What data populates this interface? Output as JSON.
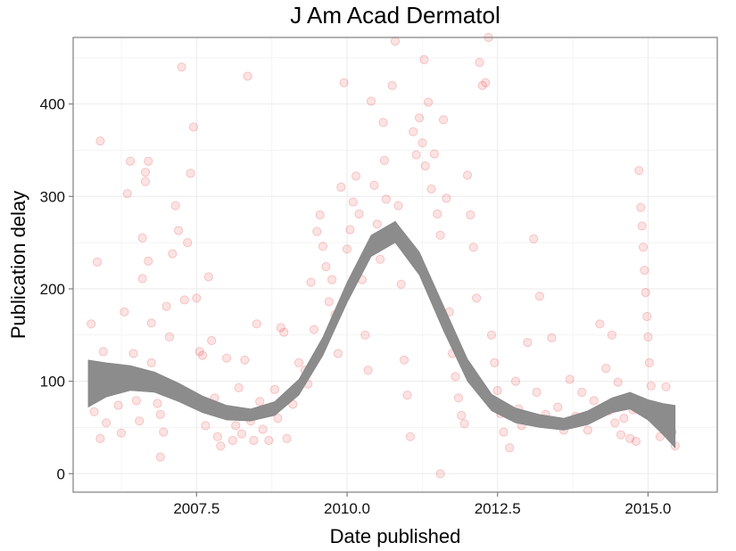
{
  "chart_data": {
    "type": "scatter",
    "title": "J Am Acad Dermatol",
    "xlabel": "Date published",
    "ylabel": "Publication delay",
    "xlim": [
      2005.45,
      2016.15
    ],
    "ylim": [
      -20,
      472
    ],
    "x_ticks": [
      2007.5,
      2010.0,
      2012.5,
      2015.0
    ],
    "x_tick_labels": [
      "2007.5",
      "2010.0",
      "2012.5",
      "2015.0"
    ],
    "y_ticks": [
      0,
      100,
      200,
      300,
      400
    ],
    "y_tick_labels": [
      "0",
      "100",
      "200",
      "300",
      "400"
    ],
    "grid": true,
    "point_color": "#e41a1c",
    "band_color": "#8c8c8c",
    "smooth_band": [
      {
        "x": 2005.7,
        "lo": 72,
        "hi": 123
      },
      {
        "x": 2006.0,
        "lo": 83,
        "hi": 120
      },
      {
        "x": 2006.4,
        "lo": 90,
        "hi": 117
      },
      {
        "x": 2006.8,
        "lo": 88,
        "hi": 110
      },
      {
        "x": 2007.2,
        "lo": 78,
        "hi": 98
      },
      {
        "x": 2007.6,
        "lo": 66,
        "hi": 84
      },
      {
        "x": 2008.0,
        "lo": 58,
        "hi": 74
      },
      {
        "x": 2008.4,
        "lo": 57,
        "hi": 70
      },
      {
        "x": 2008.8,
        "lo": 63,
        "hi": 78
      },
      {
        "x": 2009.2,
        "lo": 85,
        "hi": 102
      },
      {
        "x": 2009.6,
        "lo": 128,
        "hi": 148
      },
      {
        "x": 2010.0,
        "lo": 185,
        "hi": 207
      },
      {
        "x": 2010.4,
        "lo": 235,
        "hi": 258
      },
      {
        "x": 2010.8,
        "lo": 250,
        "hi": 273
      },
      {
        "x": 2011.2,
        "lo": 215,
        "hi": 240
      },
      {
        "x": 2011.6,
        "lo": 155,
        "hi": 182
      },
      {
        "x": 2012.0,
        "lo": 100,
        "hi": 124
      },
      {
        "x": 2012.4,
        "lo": 68,
        "hi": 86
      },
      {
        "x": 2012.8,
        "lo": 55,
        "hi": 71
      },
      {
        "x": 2013.2,
        "lo": 50,
        "hi": 64
      },
      {
        "x": 2013.6,
        "lo": 47,
        "hi": 60
      },
      {
        "x": 2014.0,
        "lo": 53,
        "hi": 68
      },
      {
        "x": 2014.4,
        "lo": 66,
        "hi": 82
      },
      {
        "x": 2014.7,
        "lo": 70,
        "hi": 88
      },
      {
        "x": 2015.0,
        "lo": 58,
        "hi": 80
      },
      {
        "x": 2015.25,
        "lo": 42,
        "hi": 76
      },
      {
        "x": 2015.45,
        "lo": 28,
        "hi": 74
      }
    ],
    "points": [
      [
        2005.75,
        162
      ],
      [
        2005.9,
        360
      ],
      [
        2005.85,
        229
      ],
      [
        2005.95,
        132
      ],
      [
        2005.8,
        67
      ],
      [
        2005.9,
        38
      ],
      [
        2006.0,
        55
      ],
      [
        2006.05,
        96
      ],
      [
        2006.2,
        74
      ],
      [
        2006.25,
        44
      ],
      [
        2006.3,
        175
      ],
      [
        2006.35,
        303
      ],
      [
        2006.4,
        338
      ],
      [
        2006.45,
        130
      ],
      [
        2006.5,
        79
      ],
      [
        2006.55,
        57
      ],
      [
        2006.6,
        211
      ],
      [
        2006.6,
        255
      ],
      [
        2006.65,
        316
      ],
      [
        2006.65,
        326
      ],
      [
        2006.7,
        338
      ],
      [
        2006.7,
        230
      ],
      [
        2006.75,
        163
      ],
      [
        2006.75,
        120
      ],
      [
        2006.8,
        93
      ],
      [
        2006.85,
        76
      ],
      [
        2006.9,
        64
      ],
      [
        2006.95,
        45
      ],
      [
        2006.9,
        18
      ],
      [
        2007.0,
        181
      ],
      [
        2007.05,
        148
      ],
      [
        2007.1,
        238
      ],
      [
        2007.15,
        290
      ],
      [
        2007.2,
        263
      ],
      [
        2007.25,
        440
      ],
      [
        2007.3,
        188
      ],
      [
        2007.35,
        250
      ],
      [
        2007.4,
        325
      ],
      [
        2007.45,
        375
      ],
      [
        2007.5,
        190
      ],
      [
        2007.55,
        132
      ],
      [
        2007.6,
        128
      ],
      [
        2007.65,
        52
      ],
      [
        2007.7,
        213
      ],
      [
        2007.75,
        144
      ],
      [
        2007.8,
        82
      ],
      [
        2007.85,
        40
      ],
      [
        2007.9,
        30
      ],
      [
        2008.0,
        125
      ],
      [
        2008.05,
        64
      ],
      [
        2008.1,
        36
      ],
      [
        2008.15,
        52
      ],
      [
        2008.2,
        93
      ],
      [
        2008.25,
        43
      ],
      [
        2008.3,
        123
      ],
      [
        2008.35,
        430
      ],
      [
        2008.4,
        57
      ],
      [
        2008.45,
        36
      ],
      [
        2008.5,
        162
      ],
      [
        2008.55,
        78
      ],
      [
        2008.6,
        48
      ],
      [
        2008.7,
        36
      ],
      [
        2008.8,
        91
      ],
      [
        2008.85,
        60
      ],
      [
        2008.9,
        158
      ],
      [
        2008.95,
        153
      ],
      [
        2009.0,
        38
      ],
      [
        2009.1,
        75
      ],
      [
        2009.2,
        120
      ],
      [
        2009.3,
        112
      ],
      [
        2009.35,
        97
      ],
      [
        2009.4,
        207
      ],
      [
        2009.45,
        156
      ],
      [
        2009.5,
        262
      ],
      [
        2009.55,
        280
      ],
      [
        2009.6,
        246
      ],
      [
        2009.65,
        224
      ],
      [
        2009.7,
        186
      ],
      [
        2009.75,
        210
      ],
      [
        2009.8,
        172
      ],
      [
        2009.85,
        130
      ],
      [
        2009.9,
        310
      ],
      [
        2009.95,
        423
      ],
      [
        2010.0,
        243
      ],
      [
        2010.05,
        264
      ],
      [
        2010.1,
        294
      ],
      [
        2010.15,
        322
      ],
      [
        2010.2,
        281
      ],
      [
        2010.25,
        210
      ],
      [
        2010.3,
        150
      ],
      [
        2010.35,
        112
      ],
      [
        2010.4,
        403
      ],
      [
        2010.45,
        312
      ],
      [
        2010.5,
        270
      ],
      [
        2010.55,
        232
      ],
      [
        2010.6,
        380
      ],
      [
        2010.62,
        339
      ],
      [
        2010.65,
        297
      ],
      [
        2010.7,
        260
      ],
      [
        2010.75,
        420
      ],
      [
        2010.8,
        468
      ],
      [
        2010.85,
        290
      ],
      [
        2010.9,
        205
      ],
      [
        2010.95,
        123
      ],
      [
        2011.0,
        85
      ],
      [
        2011.05,
        40
      ],
      [
        2011.1,
        370
      ],
      [
        2011.15,
        345
      ],
      [
        2011.2,
        385
      ],
      [
        2011.25,
        358
      ],
      [
        2011.28,
        448
      ],
      [
        2011.3,
        333
      ],
      [
        2011.35,
        402
      ],
      [
        2011.4,
        308
      ],
      [
        2011.45,
        346
      ],
      [
        2011.5,
        281
      ],
      [
        2011.55,
        258
      ],
      [
        2011.6,
        383
      ],
      [
        2011.65,
        298
      ],
      [
        2011.7,
        175
      ],
      [
        2011.75,
        130
      ],
      [
        2011.8,
        105
      ],
      [
        2011.85,
        82
      ],
      [
        2011.9,
        63
      ],
      [
        2011.95,
        54
      ],
      [
        2012.0,
        323
      ],
      [
        2012.05,
        280
      ],
      [
        2012.1,
        245
      ],
      [
        2012.15,
        190
      ],
      [
        2012.2,
        445
      ],
      [
        2012.25,
        420
      ],
      [
        2012.3,
        423
      ],
      [
        2012.35,
        472
      ],
      [
        2012.4,
        150
      ],
      [
        2012.45,
        120
      ],
      [
        2012.5,
        90
      ],
      [
        2012.55,
        65
      ],
      [
        2012.6,
        45
      ],
      [
        2012.7,
        28
      ],
      [
        2012.8,
        100
      ],
      [
        2012.85,
        70
      ],
      [
        2012.9,
        52
      ],
      [
        2013.0,
        142
      ],
      [
        2013.1,
        254
      ],
      [
        2013.15,
        88
      ],
      [
        2013.2,
        192
      ],
      [
        2013.3,
        64
      ],
      [
        2013.4,
        147
      ],
      [
        2013.5,
        72
      ],
      [
        2013.6,
        47
      ],
      [
        2013.7,
        102
      ],
      [
        2013.8,
        62
      ],
      [
        2013.9,
        88
      ],
      [
        2014.0,
        47
      ],
      [
        2014.1,
        79
      ],
      [
        2014.2,
        162
      ],
      [
        2014.3,
        114
      ],
      [
        2014.35,
        68
      ],
      [
        2014.4,
        150
      ],
      [
        2014.45,
        55
      ],
      [
        2014.5,
        99
      ],
      [
        2014.55,
        42
      ],
      [
        2014.6,
        60
      ],
      [
        2014.7,
        38
      ],
      [
        2014.75,
        69
      ],
      [
        2014.8,
        35
      ],
      [
        2014.85,
        328
      ],
      [
        2014.88,
        288
      ],
      [
        2014.9,
        268
      ],
      [
        2014.92,
        245
      ],
      [
        2014.94,
        220
      ],
      [
        2014.96,
        196
      ],
      [
        2014.98,
        170
      ],
      [
        2015.0,
        148
      ],
      [
        2015.02,
        120
      ],
      [
        2015.05,
        95
      ],
      [
        2015.1,
        72
      ],
      [
        2015.15,
        55
      ],
      [
        2015.2,
        40
      ],
      [
        2015.3,
        94
      ],
      [
        2015.35,
        62
      ],
      [
        2015.4,
        45
      ],
      [
        2015.45,
        30
      ],
      [
        2011.55,
        0
      ]
    ]
  }
}
